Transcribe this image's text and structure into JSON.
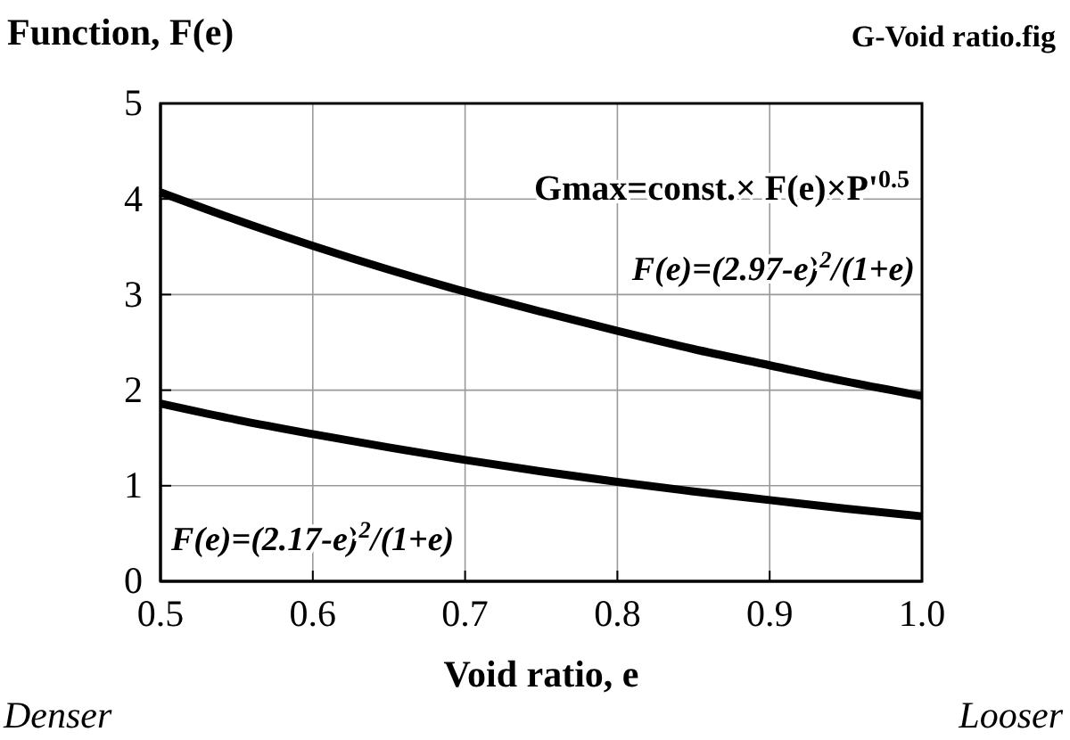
{
  "chart_data": {
    "type": "line",
    "ylabel": "Function, F(e)",
    "xlabel": "Void ratio, e",
    "annotations": [
      "G-Void ratio.fig",
      "Gmax=const.× F(e)×P'$^{0.5}$",
      "Denser",
      "Looser"
    ],
    "x": [
      0.5,
      0.55,
      0.6,
      0.65,
      0.7,
      0.75,
      0.8,
      0.85,
      0.9,
      0.95,
      1.0
    ],
    "series": [
      {
        "name": "F(e)=(2.97-e)$^{2}$/(1+e)",
        "color": "#000000",
        "values": [
          4.07,
          3.78,
          3.51,
          3.26,
          3.03,
          2.82,
          2.62,
          2.43,
          2.26,
          2.09,
          1.94
        ]
      },
      {
        "name": "F(e)=(2.17-e)$^{2}$/(1+e)",
        "color": "#000000",
        "values": [
          1.86,
          1.69,
          1.54,
          1.4,
          1.27,
          1.15,
          1.04,
          0.94,
          0.85,
          0.76,
          0.68
        ]
      }
    ],
    "xlim": [
      0.5,
      1.0
    ],
    "ylim": [
      0,
      5
    ],
    "xticks": [
      {
        "value": 0.5,
        "label": "0.5"
      },
      {
        "value": 0.6,
        "label": "0.6"
      },
      {
        "value": 0.7,
        "label": "0.7"
      },
      {
        "value": 0.8,
        "label": "0.8"
      },
      {
        "value": 0.9,
        "label": "0.9"
      },
      {
        "value": 1.0,
        "label": "1.0"
      }
    ],
    "yticks": [
      0,
      1,
      2,
      3,
      4,
      5
    ],
    "grid": true,
    "line_style": "solid",
    "marker": "none"
  }
}
